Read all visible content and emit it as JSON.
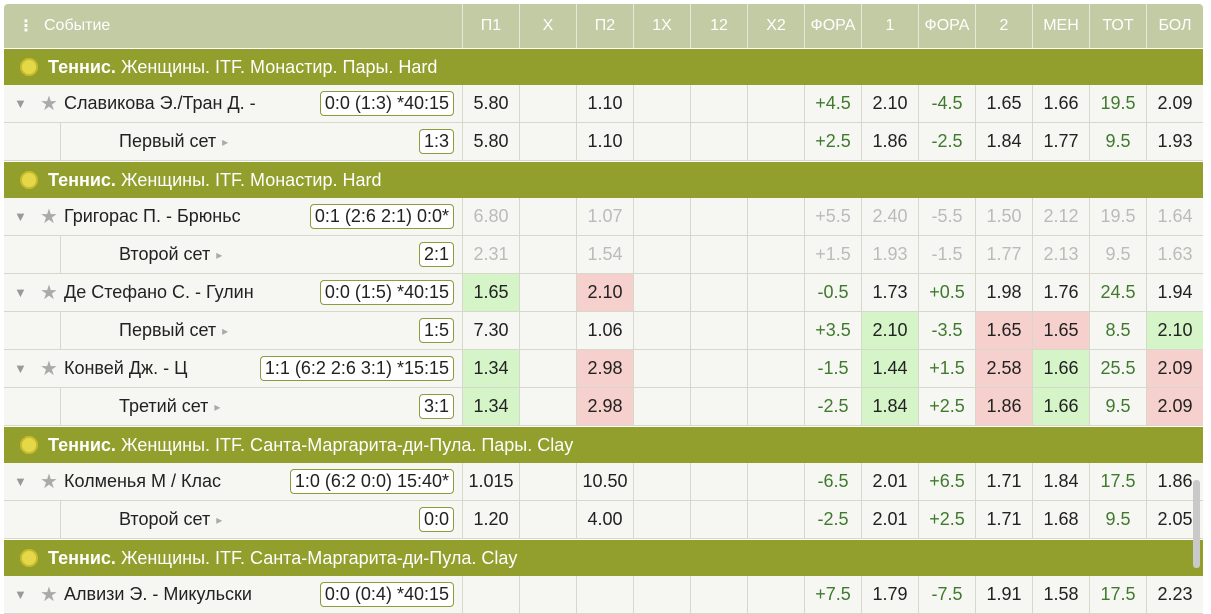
{
  "header": {
    "event": "Событие",
    "columns": [
      "П1",
      "Х",
      "П2",
      "1Х",
      "12",
      "Х2",
      "ФОРА",
      "1",
      "ФОРА",
      "2",
      "МЕН",
      "ТОТ",
      "БОЛ"
    ]
  },
  "groups": [
    {
      "sport": "Теннис.",
      "title": "Женщины. ITF. Монастир. Пары. Hard",
      "rows": [
        {
          "name": "Славикова Э./Тран Д. -",
          "score": "0:0 (1:3) *40:15",
          "odds": [
            "5.80",
            null,
            "1.10",
            null,
            null,
            null,
            "+4.5",
            "2.10",
            "-4.5",
            "1.65",
            "1.66",
            "19.5",
            "2.09"
          ]
        },
        {
          "sub": true,
          "name": "Первый сет",
          "score": "1:3",
          "odds": [
            "5.80",
            null,
            "1.10",
            null,
            null,
            null,
            "+2.5",
            "1.86",
            "-2.5",
            "1.84",
            "1.77",
            "9.5",
            "1.93"
          ]
        }
      ]
    },
    {
      "sport": "Теннис.",
      "title": "Женщины. ITF. Монастир. Hard",
      "rows": [
        {
          "name": "Григорас П. - Брюньс",
          "score": "0:1 (2:6 2:1) 0:0*",
          "suspended": true,
          "odds": [
            "6.80",
            null,
            "1.07",
            null,
            null,
            null,
            "+5.5",
            "2.40",
            "-5.5",
            "1.50",
            "2.12",
            "19.5",
            "1.64"
          ]
        },
        {
          "sub": true,
          "name": "Второй сет",
          "score": "2:1",
          "suspended": true,
          "odds": [
            "2.31",
            null,
            "1.54",
            null,
            null,
            null,
            "+1.5",
            "1.93",
            "-1.5",
            "1.77",
            "2.13",
            "9.5",
            "1.63"
          ]
        },
        {
          "name": "Де Стефано С. - Гулин",
          "score": "0:0 (1:5) *40:15",
          "up": [
            0
          ],
          "down": [
            2
          ],
          "odds": [
            "1.65",
            null,
            "2.10",
            null,
            null,
            null,
            "-0.5",
            "1.73",
            "+0.5",
            "1.98",
            "1.76",
            "24.5",
            "1.94"
          ]
        },
        {
          "sub": true,
          "name": "Первый сет",
          "score": "1:5",
          "up": [
            7,
            12
          ],
          "down": [
            9,
            10
          ],
          "odds": [
            "7.30",
            null,
            "1.06",
            null,
            null,
            null,
            "+3.5",
            "2.10",
            "-3.5",
            "1.65",
            "1.65",
            "8.5",
            "2.10"
          ]
        },
        {
          "name": "Конвей Дж. - Ц",
          "score": "1:1 (6:2 2:6 3:1) *15:15",
          "up": [
            0,
            7,
            10
          ],
          "down": [
            2,
            9,
            12
          ],
          "odds": [
            "1.34",
            null,
            "2.98",
            null,
            null,
            null,
            "-1.5",
            "1.44",
            "+1.5",
            "2.58",
            "1.66",
            "25.5",
            "2.09"
          ]
        },
        {
          "sub": true,
          "name": "Третий сет",
          "score": "3:1",
          "up": [
            0,
            7,
            10
          ],
          "down": [
            2,
            9,
            12
          ],
          "odds": [
            "1.34",
            null,
            "2.98",
            null,
            null,
            null,
            "-2.5",
            "1.84",
            "+2.5",
            "1.86",
            "1.66",
            "9.5",
            "2.09"
          ]
        }
      ]
    },
    {
      "sport": "Теннис.",
      "title": "Женщины. ITF. Санта-Маргарита-ди-Пула. Пары. Clay",
      "rows": [
        {
          "name": "Колменья М / Клас",
          "score": "1:0 (6:2 0:0) 15:40*",
          "odds": [
            "1.015",
            null,
            "10.50",
            null,
            null,
            null,
            "-6.5",
            "2.01",
            "+6.5",
            "1.71",
            "1.84",
            "17.5",
            "1.86"
          ]
        },
        {
          "sub": true,
          "name": "Второй сет",
          "score": "0:0",
          "odds": [
            "1.20",
            null,
            "4.00",
            null,
            null,
            null,
            "-2.5",
            "2.01",
            "+2.5",
            "1.71",
            "1.68",
            "9.5",
            "2.05"
          ]
        }
      ]
    },
    {
      "sport": "Теннис.",
      "title": "Женщины. ITF. Санта-Маргарита-ди-Пула. Clay",
      "rows": [
        {
          "name": "Алвизи Э. - Микульски",
          "score": "0:0 (0:4) *40:15",
          "odds": [
            null,
            null,
            null,
            null,
            null,
            null,
            "+7.5",
            "1.79",
            "-7.5",
            "1.91",
            "1.58",
            "17.5",
            "2.23"
          ]
        }
      ]
    }
  ]
}
